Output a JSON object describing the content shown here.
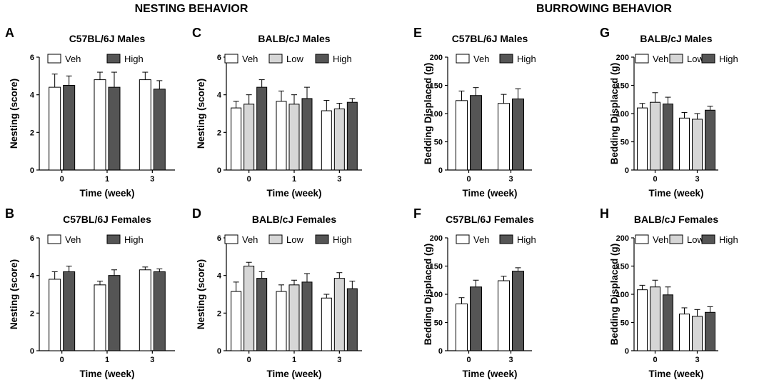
{
  "figure": {
    "section_titles": [
      "NESTING BEHAVIOR",
      "BURROWING BEHAVIOR"
    ]
  },
  "colors": {
    "Veh": "#ffffff",
    "Low": "#d6d6d6",
    "High": "#555555"
  },
  "chart_data": [
    {
      "id": "A",
      "panel_letter": "A",
      "type": "bar",
      "title": "C57BL/6J Males",
      "xlabel": "Time (week)",
      "ylabel": "Nesting (score)",
      "ylim": [
        0,
        6
      ],
      "yticks": [
        0,
        2,
        4,
        6
      ],
      "categories": [
        "0",
        "1",
        "3"
      ],
      "series": [
        {
          "name": "Veh",
          "values": [
            4.4,
            4.8,
            4.8
          ],
          "errors": [
            0.7,
            0.4,
            0.4
          ]
        },
        {
          "name": "High",
          "values": [
            4.5,
            4.4,
            4.3
          ],
          "errors": [
            0.5,
            0.8,
            0.45
          ]
        }
      ]
    },
    {
      "id": "C",
      "panel_letter": "C",
      "type": "bar",
      "title": "BALB/cJ Males",
      "xlabel": "Time (week)",
      "ylabel": "Nesting (score)",
      "ylim": [
        0,
        6
      ],
      "yticks": [
        0,
        2,
        4,
        6
      ],
      "categories": [
        "0",
        "1",
        "3"
      ],
      "series": [
        {
          "name": "Veh",
          "values": [
            3.3,
            3.65,
            3.15
          ],
          "errors": [
            0.35,
            0.55,
            0.55
          ]
        },
        {
          "name": "Low",
          "values": [
            3.5,
            3.5,
            3.25
          ],
          "errors": [
            0.5,
            0.5,
            0.3
          ]
        },
        {
          "name": "High",
          "values": [
            4.4,
            3.8,
            3.6
          ],
          "errors": [
            0.4,
            0.6,
            0.2
          ]
        }
      ]
    },
    {
      "id": "E",
      "panel_letter": "E",
      "type": "bar",
      "title": "C57BL/6J Males",
      "xlabel": "Time (week)",
      "ylabel": "Bedding Displaced (g)",
      "ylim": [
        0,
        200
      ],
      "yticks": [
        0,
        50,
        100,
        150,
        200
      ],
      "categories": [
        "0",
        "3"
      ],
      "series": [
        {
          "name": "Veh",
          "values": [
            123,
            118
          ],
          "errors": [
            17,
            16
          ]
        },
        {
          "name": "High",
          "values": [
            132,
            126
          ],
          "errors": [
            14,
            18
          ]
        }
      ]
    },
    {
      "id": "G",
      "panel_letter": "G",
      "type": "bar",
      "title": "BALB/cJ Males",
      "xlabel": "Time (week)",
      "ylabel": "Bedding Displaced (g)",
      "ylim": [
        0,
        200
      ],
      "yticks": [
        0,
        50,
        100,
        150,
        200
      ],
      "categories": [
        "0",
        "3"
      ],
      "series": [
        {
          "name": "Veh",
          "values": [
            110,
            92
          ],
          "errors": [
            8,
            10
          ]
        },
        {
          "name": "Low",
          "values": [
            120,
            90
          ],
          "errors": [
            17,
            10
          ]
        },
        {
          "name": "High",
          "values": [
            117,
            106
          ],
          "errors": [
            12,
            7
          ]
        }
      ]
    },
    {
      "id": "B",
      "panel_letter": "B",
      "type": "bar",
      "title": "C57BL/6J Females",
      "xlabel": "Time (week)",
      "ylabel": "Nesting (score)",
      "ylim": [
        0,
        6
      ],
      "yticks": [
        0,
        2,
        4,
        6
      ],
      "categories": [
        "0",
        "1",
        "3"
      ],
      "series": [
        {
          "name": "Veh",
          "values": [
            3.8,
            3.5,
            4.3
          ],
          "errors": [
            0.4,
            0.2,
            0.15
          ]
        },
        {
          "name": "High",
          "values": [
            4.2,
            4.0,
            4.2
          ],
          "errors": [
            0.3,
            0.3,
            0.15
          ]
        }
      ]
    },
    {
      "id": "D",
      "panel_letter": "D",
      "type": "bar",
      "title": "BALB/cJ Females",
      "xlabel": "Time (week)",
      "ylabel": "Nesting (score)",
      "ylim": [
        0,
        6
      ],
      "yticks": [
        0,
        2,
        4,
        6
      ],
      "categories": [
        "0",
        "1",
        "3"
      ],
      "series": [
        {
          "name": "Veh",
          "values": [
            3.15,
            3.15,
            2.8
          ],
          "errors": [
            0.5,
            0.35,
            0.2
          ]
        },
        {
          "name": "Low",
          "values": [
            4.5,
            3.5,
            3.85
          ],
          "errors": [
            0.2,
            0.25,
            0.3
          ]
        },
        {
          "name": "High",
          "values": [
            3.85,
            3.65,
            3.3
          ],
          "errors": [
            0.35,
            0.45,
            0.4
          ]
        }
      ]
    },
    {
      "id": "F",
      "panel_letter": "F",
      "type": "bar",
      "title": "C57BL/6J Females",
      "xlabel": "Time (week)",
      "ylabel": "Bedding Displaced (g)",
      "ylim": [
        0,
        200
      ],
      "yticks": [
        0,
        50,
        100,
        150,
        200
      ],
      "categories": [
        "0",
        "3"
      ],
      "series": [
        {
          "name": "Veh",
          "values": [
            83,
            124
          ],
          "errors": [
            11,
            8
          ]
        },
        {
          "name": "High",
          "values": [
            113,
            141
          ],
          "errors": [
            12,
            6
          ]
        }
      ]
    },
    {
      "id": "H",
      "panel_letter": "H",
      "type": "bar",
      "title": "BALB/cJ Females",
      "xlabel": "Time (week)",
      "ylabel": "Bedding Displaced (g)",
      "ylim": [
        0,
        200
      ],
      "yticks": [
        0,
        50,
        100,
        150,
        200
      ],
      "categories": [
        "0",
        "3"
      ],
      "series": [
        {
          "name": "Veh",
          "values": [
            108,
            65
          ],
          "errors": [
            8,
            11
          ]
        },
        {
          "name": "Low",
          "values": [
            113,
            61
          ],
          "errors": [
            12,
            12
          ]
        },
        {
          "name": "High",
          "values": [
            99,
            68
          ],
          "errors": [
            14,
            10
          ]
        }
      ]
    }
  ]
}
